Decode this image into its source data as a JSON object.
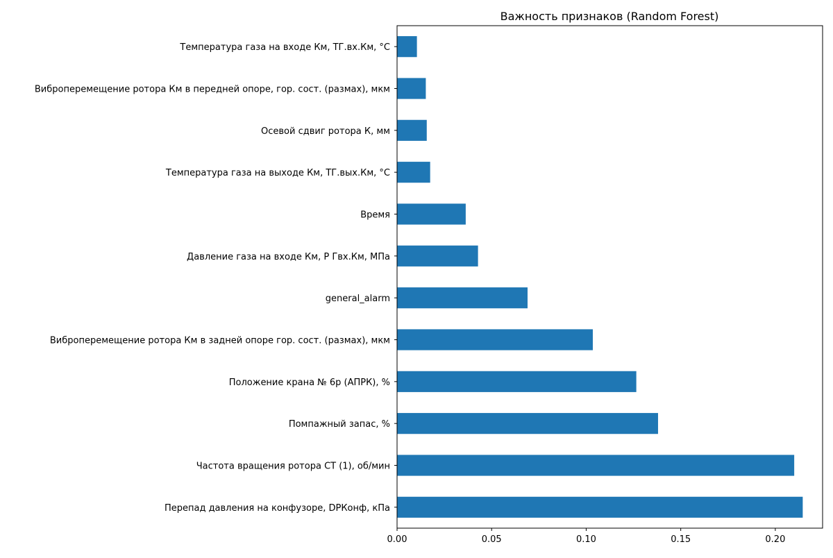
{
  "chart_data": {
    "type": "bar",
    "orientation": "horizontal",
    "title": "Важность признаков (Random Forest)",
    "xlabel": "",
    "ylabel": "",
    "xlim": [
      0.0,
      0.225
    ],
    "xticks": [
      0.0,
      0.05,
      0.1,
      0.15,
      0.2
    ],
    "xtick_labels": [
      "0.00",
      "0.05",
      "0.10",
      "0.15",
      "0.20"
    ],
    "grid": false,
    "legend": null,
    "bar_color": "#1f77b4",
    "categories": [
      "Температура газа на входе Км, ТГ.вх.Км, °С",
      "Виброперемещение ротора Км в передней опоре, гор. сост. (размах), мкм",
      "Осевой сдвиг ротора К, мм",
      "Температура газа на выходе Км, ТГ.вых.Км, °С",
      "Время",
      "Давление газа на входе Км, Р Гвх.Км, МПа",
      "general_alarm",
      "Виброперемещение ротора Км в задней опоре гор. сост. (размах), мкм",
      "Положение крана  № 6р (АПРК), %",
      "Помпажный запас, %",
      "Частота вращения ротора СТ (1), об/мин",
      "Перепад давления  на конфузоре,  DPКонф, кПа"
    ],
    "values": [
      0.0105,
      0.0152,
      0.0157,
      0.0175,
      0.0363,
      0.0428,
      0.069,
      0.1035,
      0.1265,
      0.138,
      0.21,
      0.2145
    ]
  }
}
